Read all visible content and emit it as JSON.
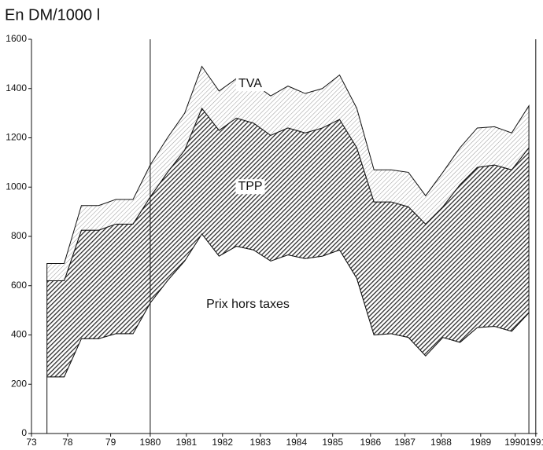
{
  "chart_data": {
    "type": "stacked_area",
    "y_axis_title": "En DM/1000 l",
    "x": [
      0,
      1,
      2,
      3,
      4,
      5,
      6,
      7,
      8,
      9,
      10,
      11,
      12,
      13,
      14,
      15,
      16,
      17,
      18,
      19,
      20,
      21,
      22,
      23,
      24,
      25,
      26,
      27,
      28
    ],
    "xlim": [
      -0.9,
      28.5
    ],
    "xticks": [
      {
        "value": -0.9,
        "label": "73"
      },
      {
        "value": 1.2,
        "label": "78"
      },
      {
        "value": 3.7,
        "label": "79"
      },
      {
        "value": 6.0,
        "label": "1980"
      },
      {
        "value": 8.1,
        "label": "1981"
      },
      {
        "value": 10.2,
        "label": "1982"
      },
      {
        "value": 12.4,
        "label": "1983"
      },
      {
        "value": 14.5,
        "label": "1984"
      },
      {
        "value": 16.6,
        "label": "1985"
      },
      {
        "value": 18.8,
        "label": "1986"
      },
      {
        "value": 20.8,
        "label": "1987"
      },
      {
        "value": 22.9,
        "label": "1988"
      },
      {
        "value": 25.2,
        "label": "1989"
      },
      {
        "value": 27.2,
        "label": "1990"
      },
      {
        "value": 28.4,
        "label": "1991"
      }
    ],
    "ylim": [
      0,
      1600
    ],
    "yticks": [
      0,
      200,
      400,
      600,
      800,
      1000,
      1200,
      1400,
      1600
    ],
    "series": [
      {
        "name": "Prix hors taxes",
        "color": "#ffffff",
        "values": [
          230,
          230,
          385,
          385,
          405,
          405,
          530,
          620,
          700,
          810,
          720,
          760,
          745,
          700,
          725,
          710,
          720,
          745,
          630,
          400,
          405,
          390,
          315,
          390,
          370,
          430,
          435,
          415,
          490
        ]
      },
      {
        "name": "TPP",
        "color": "#2a2a2a",
        "values": [
          390,
          390,
          440,
          440,
          445,
          445,
          430,
          440,
          450,
          510,
          510,
          520,
          515,
          510,
          515,
          510,
          520,
          530,
          530,
          540,
          535,
          530,
          535,
          530,
          640,
          650,
          655,
          655,
          670
        ]
      },
      {
        "name": "TVA",
        "color": "#9a9a9a",
        "values": [
          70,
          70,
          100,
          100,
          100,
          100,
          130,
          140,
          150,
          170,
          160,
          160,
          160,
          160,
          170,
          160,
          160,
          180,
          160,
          130,
          130,
          140,
          115,
          140,
          150,
          160,
          155,
          150,
          170
        ]
      }
    ]
  }
}
